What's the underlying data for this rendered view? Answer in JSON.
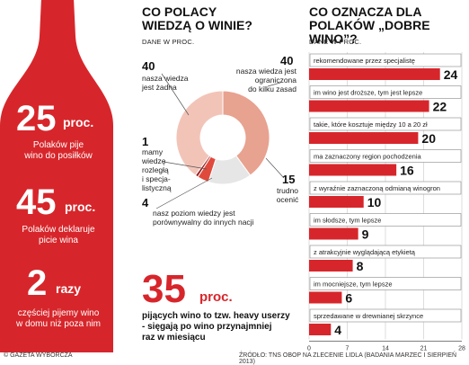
{
  "left_panel": {
    "stat1": {
      "number": "25",
      "unit": "proc.",
      "line1": "Polaków pije",
      "line2": "wino do posiłków"
    },
    "stat2": {
      "number": "45",
      "unit": "proc.",
      "line1": "Polaków deklaruje",
      "line2": "picie wina"
    },
    "stat3": {
      "number": "2",
      "unit": "razy",
      "line1": "częściej pijemy wino",
      "line2": "w domu niż poza nim"
    },
    "colors": {
      "bottle": "#d7262b"
    }
  },
  "middle_panel": {
    "title_line1": "CO POLACY",
    "title_line2": "WIEDZĄ O WINIE?",
    "subtitle": "DANE W PROC.",
    "labels": [
      {
        "value": "40",
        "lines": [
          "nasza wiedza",
          "jest żadna"
        ]
      },
      {
        "value": "40",
        "lines": [
          "nasza wiedza jest",
          "ograniczona",
          "do kilku zasad"
        ]
      },
      {
        "value": "1",
        "lines": [
          "mamy",
          "wiedzę",
          "rozległą",
          "i specja-",
          "listyczną"
        ]
      },
      {
        "value": "4",
        "lines": [
          "nasz poziom wiedzy jest",
          "porównywalny do innych nacji"
        ]
      },
      {
        "value": "15",
        "lines": [
          "trudno",
          "ocenić"
        ]
      }
    ],
    "stat35": {
      "number": "35",
      "unit": "proc.",
      "lines": [
        "pijących wino to tzw. heavy userzy",
        "- sięgają po wino przynajmniej",
        "raz w miesiącu"
      ]
    }
  },
  "chart_data": [
    {
      "type": "pie",
      "title": "CO POLACY WIEDZĄ O WINIE?",
      "subtitle": "DANE W PROC.",
      "slices": [
        {
          "label": "nasza wiedza jest żadna",
          "value": 40,
          "color": "#f2c4b8"
        },
        {
          "label": "nasza wiedza jest ograniczona do kilku zasad",
          "value": 40,
          "color": "#e8a290"
        },
        {
          "label": "trudno ocenić",
          "value": 15,
          "color": "#e6e6e6"
        },
        {
          "label": "nasz poziom wiedzy jest porównywalny do innych nacji",
          "value": 4,
          "color": "#e04a3c"
        },
        {
          "label": "mamy wiedzę rozległą i specjalistyczną",
          "value": 1,
          "color": "#9b1b1f"
        }
      ]
    },
    {
      "type": "bar",
      "title": "CO OZNACZA DLA POLAKÓW „DOBRE WINO”?",
      "subtitle": "DANE W PROC.",
      "categories": [
        "rekomendowane przez specjalistę",
        "im wino jest droższe, tym jest lepsze",
        "takie, które kosztuje między 10 a 20 zł",
        "ma zaznaczony region pochodzenia",
        "z wyraźnie zaznaczoną odmianą winogron",
        "im słodsze, tym lepsze",
        "z atrakcyjnie wyglądającą etykietą",
        "im mocniejsze, tym lepsze",
        "sprzedawane w drewnianej skrzynce"
      ],
      "values": [
        24,
        22,
        20,
        16,
        10,
        9,
        8,
        6,
        4
      ],
      "xlim": [
        0,
        28
      ],
      "xticks": [
        "0",
        "7",
        "14",
        "21",
        "28"
      ],
      "grid": true,
      "color": "#d7262b"
    }
  ],
  "right_panel": {
    "title_line1": "CO OZNACZA DLA",
    "title_line2": "POLAKÓW „DOBRE WINO”?",
    "subtitle": "DANE W PROC."
  },
  "footer": {
    "left": "© GAZETA WYBORCZA",
    "right": "ŹRÓDŁO: TNS OBOP NA ZLECENIE LIDLA (BADANIA MARZEC I SIERPIEŃ 2013)"
  }
}
